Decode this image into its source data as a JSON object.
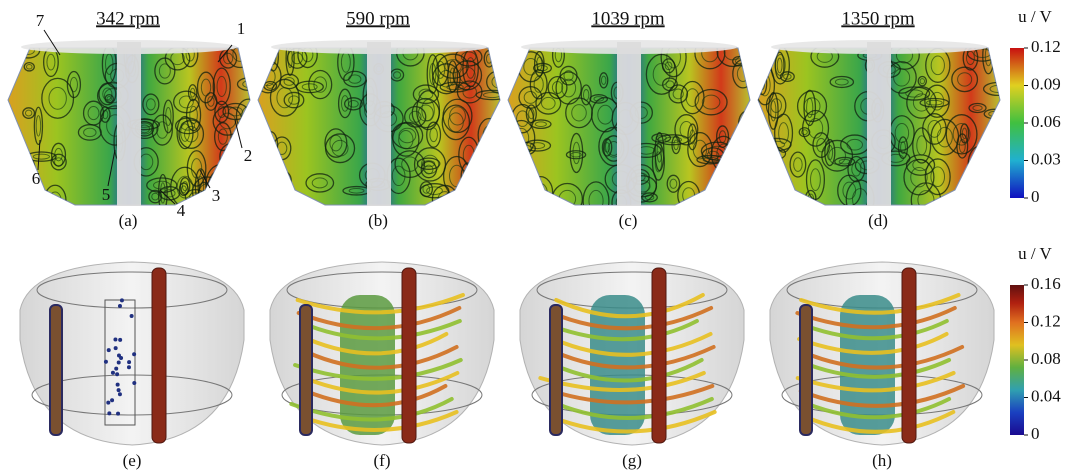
{
  "top_row": {
    "panels": [
      {
        "title": "342 rpm",
        "label": "(a)"
      },
      {
        "title": "590 rpm",
        "label": "(b)"
      },
      {
        "title": "1039 rpm",
        "label": "(c)"
      },
      {
        "title": "1350 rpm",
        "label": "(d)"
      }
    ],
    "callouts": [
      "1",
      "2",
      "3",
      "4",
      "5",
      "6",
      "7"
    ],
    "colorbar": {
      "title": "u / V",
      "ticks": [
        "0.12",
        "0.09",
        "0.06",
        "0.03",
        "0"
      ]
    }
  },
  "bottom_row": {
    "panels": [
      {
        "label": "(e)"
      },
      {
        "label": "(f)"
      },
      {
        "label": "(g)"
      },
      {
        "label": "(h)"
      }
    ],
    "colorbar": {
      "title": "u / V",
      "ticks": [
        "0.16",
        "0.12",
        "0.08",
        "0.04",
        "0"
      ]
    }
  }
}
